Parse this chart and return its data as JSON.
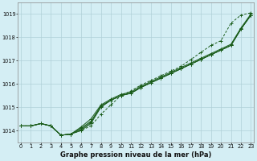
{
  "title": "Graphe pression niveau de la mer (hPa)",
  "xlabel_hours": [
    0,
    1,
    2,
    3,
    4,
    5,
    6,
    7,
    8,
    9,
    10,
    11,
    12,
    13,
    14,
    15,
    16,
    17,
    18,
    19,
    20,
    21,
    22,
    23
  ],
  "ylim": [
    1013.5,
    1019.5
  ],
  "yticks": [
    1014,
    1015,
    1016,
    1017,
    1018,
    1019
  ],
  "xlim": [
    -0.3,
    23.3
  ],
  "bg_color": "#d4eef4",
  "grid_color": "#b0d0d8",
  "line_color": "#1a5c1a",
  "series": [
    [
      1014.2,
      1014.2,
      1014.3,
      1014.2,
      1013.8,
      1013.85,
      1014.0,
      1014.3,
      1015.0,
      1015.3,
      1015.5,
      1015.6,
      1015.85,
      1016.05,
      1016.25,
      1016.45,
      1016.65,
      1016.85,
      1017.05,
      1017.25,
      1017.45,
      1017.65,
      1018.35,
      1018.95
    ],
    [
      1014.2,
      1014.2,
      1014.3,
      1014.2,
      1013.8,
      1013.85,
      1014.05,
      1014.35,
      1015.05,
      1015.3,
      1015.5,
      1015.6,
      1015.85,
      1016.05,
      1016.25,
      1016.45,
      1016.65,
      1016.85,
      1017.05,
      1017.25,
      1017.45,
      1017.65,
      1018.35,
      1018.95
    ],
    [
      1014.2,
      1014.2,
      1014.3,
      1014.2,
      1013.8,
      1013.85,
      1014.1,
      1014.4,
      1015.05,
      1015.3,
      1015.5,
      1015.6,
      1015.85,
      1016.05,
      1016.25,
      1016.45,
      1016.65,
      1016.85,
      1017.05,
      1017.25,
      1017.45,
      1017.65,
      1018.35,
      1018.95
    ],
    [
      1014.2,
      1014.2,
      1014.3,
      1014.2,
      1013.8,
      1013.85,
      1014.15,
      1014.5,
      1015.1,
      1015.35,
      1015.55,
      1015.65,
      1015.9,
      1016.1,
      1016.3,
      1016.5,
      1016.7,
      1016.9,
      1017.1,
      1017.3,
      1017.5,
      1017.7,
      1018.4,
      1019.0
    ]
  ],
  "top_series": [
    1014.2,
    1014.2,
    1014.3,
    1014.2,
    1013.8,
    1013.85,
    1014.0,
    1014.2,
    1014.7,
    1015.1,
    1015.5,
    1015.7,
    1015.95,
    1016.15,
    1016.35,
    1016.55,
    1016.75,
    1017.05,
    1017.35,
    1017.65,
    1017.85,
    1018.6,
    1018.95,
    1019.05
  ]
}
